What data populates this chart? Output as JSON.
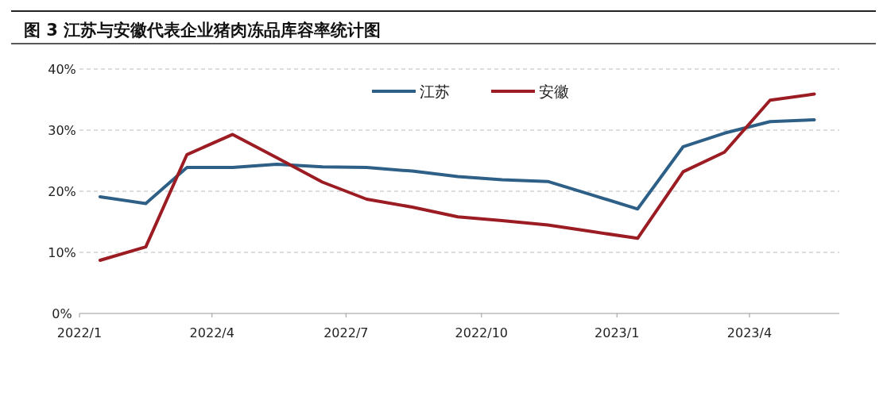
{
  "chart_data": {
    "type": "line",
    "title": "图 3 江苏与安徽代表企业猪肉冻品库容率统计图",
    "x": [
      "2022-01-15",
      "2022-02-15",
      "2022-03-15",
      "2022-04-15",
      "2022-05-15",
      "2022-06-15",
      "2022-07-15",
      "2022-08-15",
      "2022-09-15",
      "2022-10-15",
      "2022-11-15",
      "2022-12-15",
      "2023-01-15",
      "2023-02-15",
      "2023-03-15",
      "2023-04-15",
      "2023-05-15"
    ],
    "series": [
      {
        "name": "江苏",
        "color": "#2e5f86",
        "values": [
          19.1,
          18.0,
          23.9,
          23.9,
          24.4,
          24.0,
          23.9,
          23.3,
          22.4,
          21.9,
          21.6,
          19.4,
          17.1,
          27.3,
          29.5,
          31.4,
          31.7
        ]
      },
      {
        "name": "安徽",
        "color": "#9b1c22",
        "values": [
          8.7,
          10.9,
          26.0,
          29.3,
          25.5,
          21.5,
          18.7,
          17.4,
          15.8,
          15.2,
          14.5,
          13.4,
          12.3,
          23.2,
          26.4,
          34.9,
          35.9
        ]
      }
    ],
    "xlim": [
      "2022-01-01",
      "2023-06-01"
    ],
    "xticks": [
      {
        "value": "2022-01-01",
        "label": "2022/1"
      },
      {
        "value": "2022-04-01",
        "label": "2022/4"
      },
      {
        "value": "2022-07-01",
        "label": "2022/7"
      },
      {
        "value": "2022-10-01",
        "label": "2022/10"
      },
      {
        "value": "2023-01-01",
        "label": "2023/1"
      },
      {
        "value": "2023-04-01",
        "label": "2023/4"
      }
    ],
    "ylim": [
      0,
      40
    ],
    "yticks": [
      {
        "value": 0,
        "label": "0%"
      },
      {
        "value": 10,
        "label": "10%"
      },
      {
        "value": 20,
        "label": "20%"
      },
      {
        "value": 30,
        "label": "30%"
      },
      {
        "value": 40,
        "label": "40%"
      }
    ],
    "grid": "y",
    "legend": "top",
    "marker": "none",
    "line_style": "solid"
  }
}
